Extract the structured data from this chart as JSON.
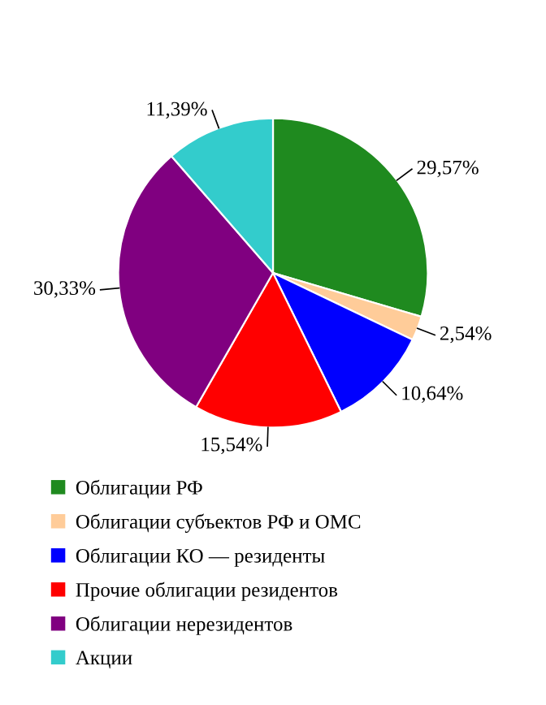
{
  "chart_data": {
    "type": "pie",
    "categories": [
      "Облигации РФ",
      "Облигации субъектов РФ и ОМС",
      "Облигации КО — резиденты",
      "Прочие облигации резидентов",
      "Облигации нерезидентов",
      "Акции"
    ],
    "values": [
      29.57,
      2.54,
      10.64,
      15.54,
      30.33,
      11.39
    ],
    "value_labels": [
      "29,57%",
      "2,54%",
      "10,64%",
      "15,54%",
      "30,33%",
      "11,39%"
    ],
    "colors": [
      "#1f8a1f",
      "#ffcc99",
      "#0000ff",
      "#ff0000",
      "#800080",
      "#33cccc"
    ],
    "legend": "bottom"
  }
}
